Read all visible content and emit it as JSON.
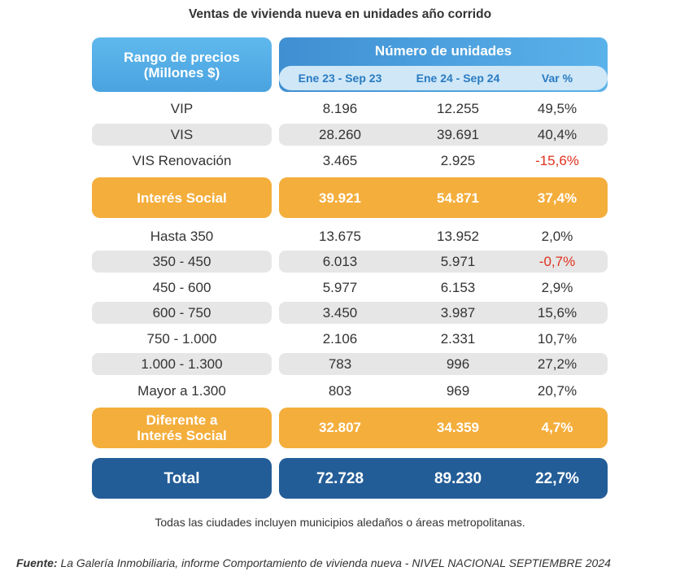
{
  "chart_data": {
    "type": "table",
    "title": "Ventas de vivienda nueva en unidades año corrido",
    "header": {
      "range_label_line1": "Rango de precios",
      "range_label_line2": "(Millones $)",
      "units_label": "Número de unidades",
      "columns": [
        "Ene 23 - Sep 23",
        "Ene 24 - Sep 24",
        "Var %"
      ]
    },
    "rows": [
      {
        "label": "VIP",
        "v2023": "8.196",
        "v2024": "12.255",
        "var": "49,5%"
      },
      {
        "label": "VIS",
        "v2023": "28.260",
        "v2024": "39.691",
        "var": "40,4%"
      },
      {
        "label": "VIS Renovación",
        "v2023": "3.465",
        "v2024": "2.925",
        "var": "-15,6%"
      },
      {
        "label": "Interés Social",
        "v2023": "39.921",
        "v2024": "54.871",
        "var": "37,4%"
      },
      {
        "label": "Hasta 350",
        "v2023": "13.675",
        "v2024": "13.952",
        "var": "2,0%"
      },
      {
        "label": "350 - 450",
        "v2023": "6.013",
        "v2024": "5.971",
        "var": "-0,7%"
      },
      {
        "label": "450 - 600",
        "v2023": "5.977",
        "v2024": "6.153",
        "var": "2,9%"
      },
      {
        "label": "600 - 750",
        "v2023": "3.450",
        "v2024": "3.987",
        "var": "15,6%"
      },
      {
        "label": "750 - 1.000",
        "v2023": "2.106",
        "v2024": "2.331",
        "var": "10,7%"
      },
      {
        "label": "1.000 - 1.300",
        "v2023": "783",
        "v2024": "996",
        "var": "27,2%"
      },
      {
        "label": "Mayor a 1.300",
        "v2023": "803",
        "v2024": "969",
        "var": "20,7%"
      },
      {
        "label_line1": "Diferente a",
        "label_line2": "Interés Social",
        "v2023": "32.807",
        "v2024": "34.359",
        "var": "4,7%"
      },
      {
        "label": "Total",
        "v2023": "72.728",
        "v2024": "89.230",
        "var": "22,7%"
      }
    ],
    "note": "Todas las ciudades incluyen municipios aledaños o áreas metropolitanas.",
    "source_label": "Fuente:",
    "source_text": "La Galería Inmobiliaria, informe Comportamiento de vivienda nueva - NIVEL NACIONAL SEPTIEMBRE 2024",
    "colors": {
      "header_blue": "#4aa3e0",
      "subheader_bg": "#cfe7f7",
      "subheader_text": "#2a7bc1",
      "stripe": "#e6e6e6",
      "orange": "#f4ae3c",
      "navy": "#235d98",
      "negative": "#e0301e"
    }
  }
}
